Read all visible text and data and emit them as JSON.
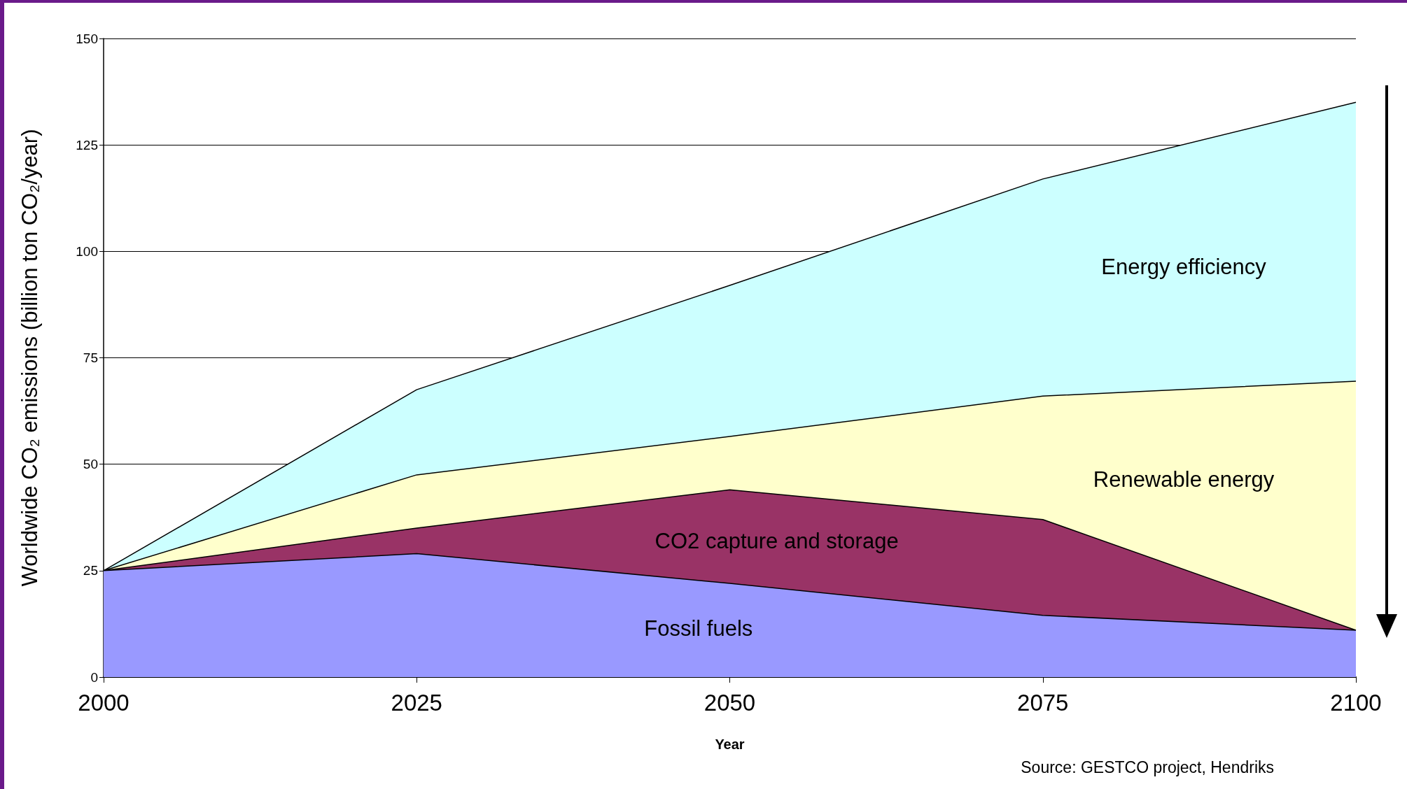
{
  "chart_data": {
    "type": "area",
    "stacked": true,
    "xlabel": "Year",
    "ylabel": "Worldwide CO₂ emissions (billion ton CO₂/year)",
    "x": [
      2000,
      2025,
      2050,
      2075,
      2100
    ],
    "series": [
      {
        "name": "Fossil fuels",
        "color": "#9999ff",
        "values": [
          25,
          29,
          22,
          14.5,
          11
        ]
      },
      {
        "name": "CO2 capture and storage",
        "color": "#993366",
        "values": [
          0,
          6,
          22,
          22.5,
          0
        ]
      },
      {
        "name": "Renewable energy",
        "color": "#ffffcc",
        "values": [
          0,
          12.5,
          12.5,
          29,
          58.5
        ]
      },
      {
        "name": "Energy efficiency",
        "color": "#ccffff",
        "values": [
          0,
          20,
          35.5,
          51,
          65.5
        ]
      }
    ],
    "xlim": [
      2000,
      2100
    ],
    "xticks": [
      2000,
      2025,
      2050,
      2075,
      2100
    ],
    "ylim": [
      0,
      150
    ],
    "yticks": [
      0,
      25,
      50,
      75,
      100,
      125,
      150
    ],
    "grid": "y",
    "legend": false,
    "annotations": [
      "Source: GESTCO project, Hendriks"
    ]
  }
}
